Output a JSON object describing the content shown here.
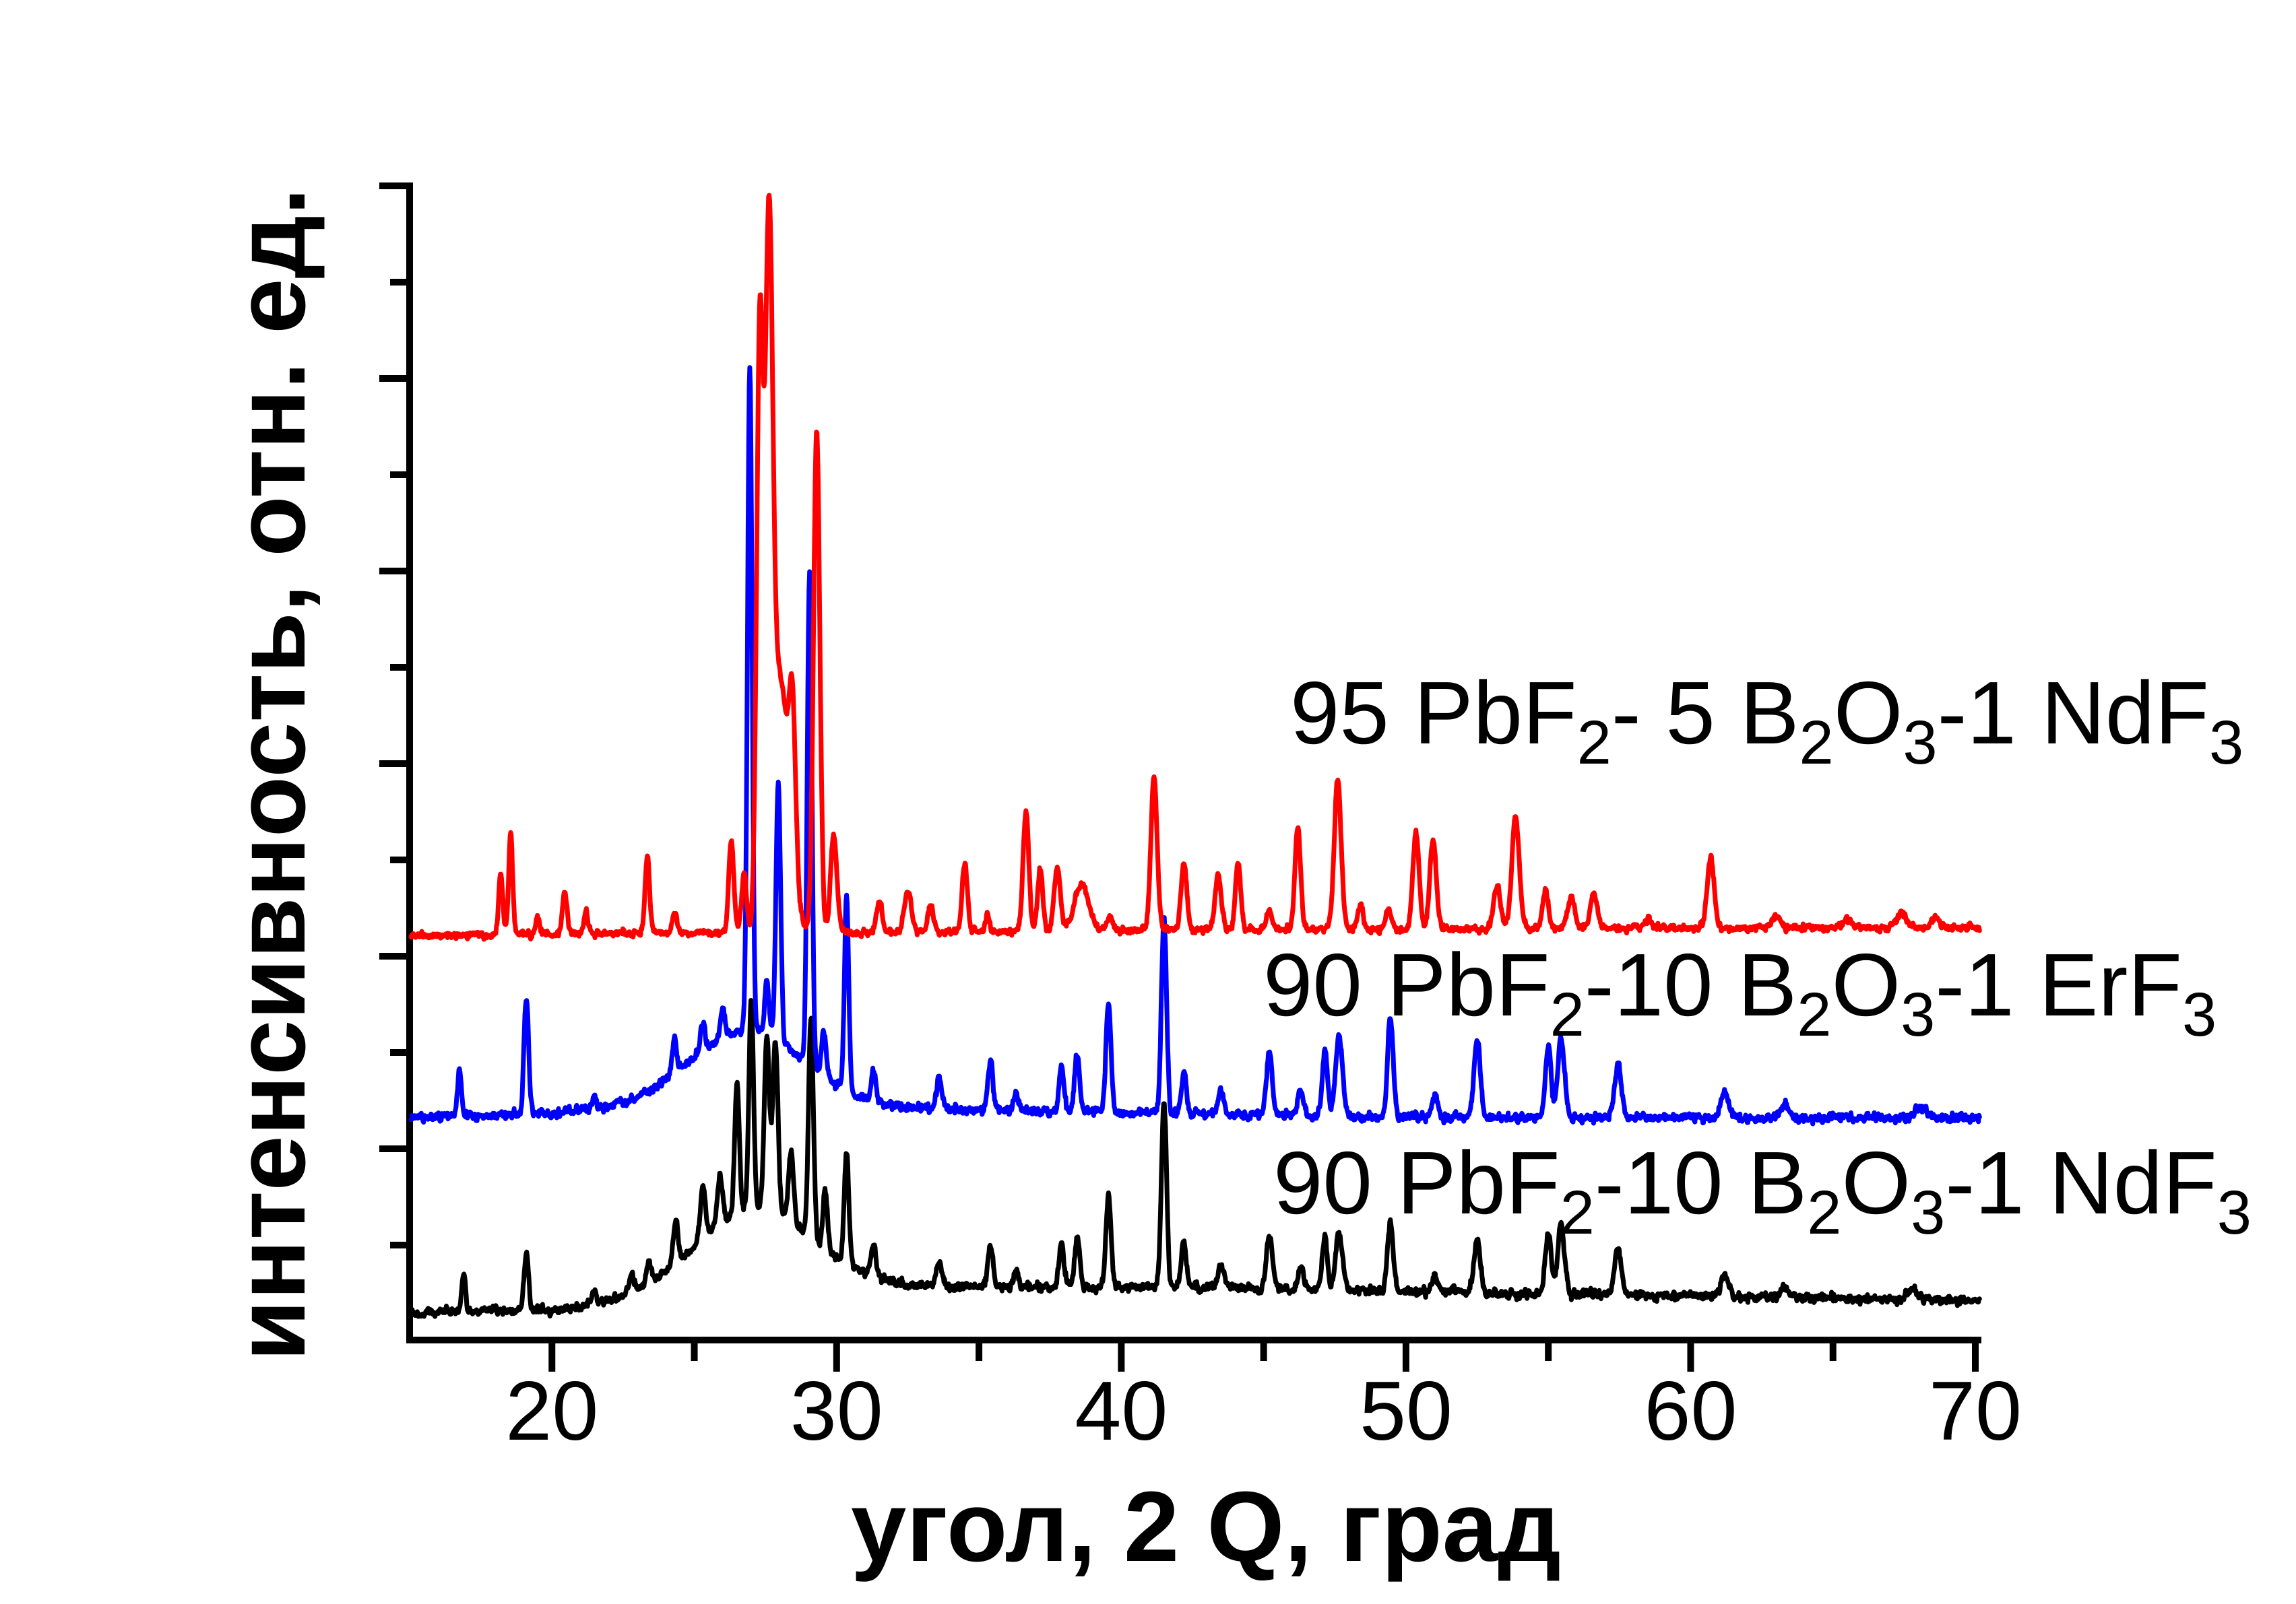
{
  "figure": {
    "background": "#ffffff",
    "axis_color": "#000000"
  },
  "chart_data": {
    "type": "line",
    "title": "",
    "xlabel": "угол, 2 Q, град",
    "ylabel": "интенсивность, отн. ед.",
    "x_axis": {
      "range": [
        15,
        70
      ],
      "ticks_major": [
        20,
        30,
        40,
        50,
        60,
        70
      ],
      "ticks_minor": [
        25,
        35,
        45,
        55,
        65
      ]
    },
    "y_axis": {
      "range": [
        0,
        1
      ],
      "tick_labels": [],
      "note": "relative intensity, unlabeled alternating ticks"
    },
    "grid": false,
    "legend_position": "inside-right, stacked above each curve",
    "legend": [
      {
        "id": "red",
        "color": "#ff0000",
        "text": "95 PbF2- 5 B2O3-1 NdF3",
        "segments": [
          [
            "95 PbF",
            0
          ],
          [
            "2",
            1
          ],
          [
            "- 5 B",
            0
          ],
          [
            "2",
            1
          ],
          [
            "O",
            0
          ],
          [
            "3",
            1
          ],
          [
            "-1 NdF",
            0
          ],
          [
            "3",
            1
          ]
        ]
      },
      {
        "id": "blue",
        "color": "#0000ff",
        "text": "90 PbF2-10 B2O3-1 ErF3",
        "segments": [
          [
            "90 PbF",
            0
          ],
          [
            "2",
            1
          ],
          [
            "-10 B",
            0
          ],
          [
            "2",
            1
          ],
          [
            "O",
            0
          ],
          [
            "3",
            1
          ],
          [
            "-1 ErF",
            0
          ],
          [
            "3",
            1
          ]
        ]
      },
      {
        "id": "black",
        "color": "#000000",
        "text": "90 PbF2-10 B2O3-1 NdF3",
        "segments": [
          [
            "90 PbF",
            0
          ],
          [
            "2",
            1
          ],
          [
            "-10 B",
            0
          ],
          [
            "2",
            1
          ],
          [
            "O",
            0
          ],
          [
            "3",
            1
          ],
          [
            "-1 NdF",
            0
          ],
          [
            "3",
            1
          ]
        ]
      }
    ],
    "series": [
      {
        "id": "black",
        "name": "90 PbF2-10 B2O3-1 NdF3",
        "color": "#000000",
        "noise": 0.0045,
        "seed": 3,
        "baseline": [
          [
            15,
            0.0235
          ],
          [
            20,
            0.026
          ],
          [
            24,
            0.035
          ],
          [
            32,
            0.046
          ],
          [
            42,
            0.046
          ],
          [
            50,
            0.042
          ],
          [
            60,
            0.038
          ],
          [
            70,
            0.034
          ]
        ],
        "humps": [
          [
            27.1,
            0.075,
            2.1
          ]
        ],
        "peaks": [
          [
            16.9,
            0.032,
            0.07
          ],
          [
            19.1,
            0.05,
            0.08
          ],
          [
            21.5,
            0.012,
            0.07
          ],
          [
            22.8,
            0.016,
            0.08
          ],
          [
            23.4,
            0.018,
            0.08
          ],
          [
            24.35,
            0.038,
            0.08
          ],
          [
            25.3,
            0.044,
            0.09
          ],
          [
            25.9,
            0.04,
            0.09
          ],
          [
            26.5,
            0.115,
            0.08
          ],
          [
            27.0,
            0.182,
            0.08
          ],
          [
            27.55,
            0.15,
            0.09
          ],
          [
            27.85,
            0.15,
            0.09
          ],
          [
            28.4,
            0.06,
            0.09
          ],
          [
            29.1,
            0.19,
            0.085
          ],
          [
            29.6,
            0.05,
            0.08
          ],
          [
            30.35,
            0.095,
            0.08
          ],
          [
            31.3,
            0.025,
            0.09
          ],
          [
            33.6,
            0.022,
            0.1
          ],
          [
            35.4,
            0.035,
            0.09
          ],
          [
            36.3,
            0.015,
            0.08
          ],
          [
            37.9,
            0.035,
            0.09
          ],
          [
            38.45,
            0.045,
            0.09
          ],
          [
            39.55,
            0.08,
            0.09
          ],
          [
            41.5,
            0.16,
            0.09
          ],
          [
            42.2,
            0.04,
            0.09
          ],
          [
            43.5,
            0.02,
            0.1
          ],
          [
            45.2,
            0.048,
            0.1
          ],
          [
            46.3,
            0.02,
            0.09
          ],
          [
            47.15,
            0.045,
            0.09
          ],
          [
            47.65,
            0.05,
            0.12
          ],
          [
            49.45,
            0.06,
            0.1
          ],
          [
            51.0,
            0.015,
            0.1
          ],
          [
            52.5,
            0.045,
            0.11
          ],
          [
            55.0,
            0.055,
            0.1
          ],
          [
            55.45,
            0.06,
            0.12
          ],
          [
            57.45,
            0.04,
            0.12
          ],
          [
            61.2,
            0.02,
            0.13
          ],
          [
            63.3,
            0.008,
            0.14
          ],
          [
            67.8,
            0.01,
            0.18
          ]
        ]
      },
      {
        "id": "blue",
        "name": "90 PbF2-10 B2O3-1 ErF3",
        "color": "#0000ff",
        "noise": 0.0045,
        "seed": 2,
        "baseline": [
          [
            15,
            0.1925
          ],
          [
            20,
            0.196
          ],
          [
            24,
            0.203
          ],
          [
            33,
            0.2
          ],
          [
            42,
            0.196
          ],
          [
            50,
            0.193
          ],
          [
            60,
            0.1925
          ],
          [
            70,
            0.1925
          ]
        ],
        "humps": [
          [
            26.9,
            0.066,
            2.0
          ]
        ],
        "peaks": [
          [
            16.75,
            0.0385,
            0.07
          ],
          [
            19.1,
            0.102,
            0.08
          ],
          [
            21.5,
            0.012,
            0.07
          ],
          [
            24.3,
            0.03,
            0.08
          ],
          [
            25.3,
            0.025,
            0.08
          ],
          [
            26.0,
            0.025,
            0.08
          ],
          [
            26.95,
            0.575,
            0.08
          ],
          [
            27.55,
            0.045,
            0.08
          ],
          [
            27.95,
            0.225,
            0.08
          ],
          [
            29.05,
            0.43,
            0.08
          ],
          [
            29.55,
            0.04,
            0.08
          ],
          [
            30.35,
            0.17,
            0.075
          ],
          [
            31.3,
            0.028,
            0.08
          ],
          [
            33.6,
            0.025,
            0.1
          ],
          [
            35.4,
            0.042,
            0.09
          ],
          [
            36.3,
            0.018,
            0.08
          ],
          [
            37.9,
            0.04,
            0.09
          ],
          [
            38.45,
            0.05,
            0.09
          ],
          [
            39.55,
            0.095,
            0.09
          ],
          [
            41.5,
            0.17,
            0.09
          ],
          [
            42.2,
            0.035,
            0.09
          ],
          [
            43.5,
            0.022,
            0.1
          ],
          [
            45.2,
            0.054,
            0.1
          ],
          [
            46.3,
            0.022,
            0.09
          ],
          [
            47.15,
            0.059,
            0.09
          ],
          [
            47.65,
            0.07,
            0.12
          ],
          [
            49.45,
            0.084,
            0.1
          ],
          [
            51.0,
            0.018,
            0.1
          ],
          [
            52.5,
            0.068,
            0.11
          ],
          [
            55.0,
            0.062,
            0.1
          ],
          [
            55.45,
            0.068,
            0.12
          ],
          [
            57.45,
            0.046,
            0.12
          ],
          [
            61.2,
            0.022,
            0.13
          ],
          [
            63.3,
            0.01,
            0.14
          ],
          [
            68.1,
            0.01,
            0.18
          ]
        ]
      },
      {
        "id": "red",
        "name": "95 PbF2- 5 B2O3-1 NdF3",
        "color": "#ff0000",
        "noise": 0.0035,
        "seed": 1,
        "baseline": [
          [
            15,
            0.35
          ],
          [
            20,
            0.352
          ],
          [
            30,
            0.353
          ],
          [
            40,
            0.355
          ],
          [
            50,
            0.356
          ],
          [
            60,
            0.357
          ],
          [
            70,
            0.357
          ]
        ],
        "humps": [],
        "peaks": [
          [
            18.2,
            0.055,
            0.07
          ],
          [
            18.55,
            0.088,
            0.07
          ],
          [
            19.5,
            0.013,
            0.07
          ],
          [
            20.45,
            0.038,
            0.08
          ],
          [
            21.2,
            0.019,
            0.07
          ],
          [
            23.35,
            0.066,
            0.08
          ],
          [
            24.3,
            0.019,
            0.08
          ],
          [
            26.3,
            0.079,
            0.09
          ],
          [
            26.75,
            0.05,
            0.09
          ],
          [
            27.3,
            0.5,
            0.11
          ],
          [
            27.62,
            0.52,
            0.13
          ],
          [
            28.0,
            0.22,
            0.33
          ],
          [
            28.45,
            0.13,
            0.11
          ],
          [
            29.3,
            0.435,
            0.11
          ],
          [
            29.9,
            0.085,
            0.11
          ],
          [
            31.5,
            0.026,
            0.1
          ],
          [
            32.5,
            0.035,
            0.12
          ],
          [
            33.3,
            0.023,
            0.1
          ],
          [
            34.5,
            0.06,
            0.09
          ],
          [
            35.3,
            0.015,
            0.08
          ],
          [
            36.65,
            0.104,
            0.1
          ],
          [
            37.15,
            0.054,
            0.09
          ],
          [
            37.75,
            0.054,
            0.11
          ],
          [
            38.6,
            0.04,
            0.25
          ],
          [
            39.6,
            0.012,
            0.1
          ],
          [
            41.15,
            0.132,
            0.11
          ],
          [
            42.2,
            0.058,
            0.1
          ],
          [
            43.4,
            0.048,
            0.11
          ],
          [
            44.1,
            0.058,
            0.09
          ],
          [
            45.2,
            0.015,
            0.1
          ],
          [
            46.2,
            0.088,
            0.1
          ],
          [
            47.6,
            0.131,
            0.12
          ],
          [
            48.4,
            0.02,
            0.1
          ],
          [
            49.4,
            0.018,
            0.1
          ],
          [
            50.35,
            0.084,
            0.11
          ],
          [
            50.95,
            0.078,
            0.11
          ],
          [
            53.2,
            0.037,
            0.12
          ],
          [
            53.85,
            0.097,
            0.13
          ],
          [
            54.9,
            0.034,
            0.1
          ],
          [
            55.8,
            0.027,
            0.12
          ],
          [
            56.6,
            0.03,
            0.12
          ],
          [
            58.5,
            0.008,
            0.12
          ],
          [
            60.7,
            0.06,
            0.12
          ],
          [
            63.0,
            0.01,
            0.15
          ],
          [
            65.5,
            0.008,
            0.15
          ],
          [
            67.4,
            0.013,
            0.18
          ],
          [
            68.6,
            0.008,
            0.15
          ]
        ]
      }
    ]
  }
}
